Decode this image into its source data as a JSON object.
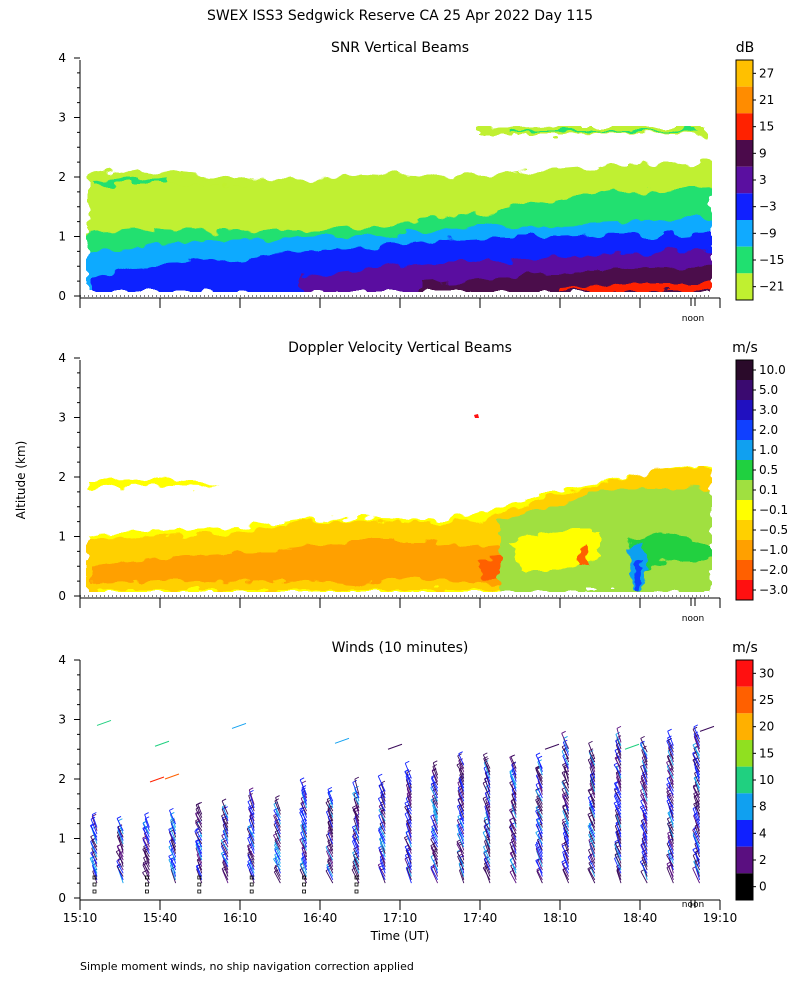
{
  "figure": {
    "title": "SWEX ISS3 Sedgwick Reserve CA  25 Apr 2022 Day 115",
    "footnote": "Simple moment winds, no ship navigation correction applied",
    "ylabel": "Altitude (km)",
    "xlabel": "Time (UT)",
    "noon_label": "noon"
  },
  "chart_data": [
    {
      "type": "heatmap",
      "title": "SNR Vertical Beams",
      "units": "dB",
      "y_ticks": [
        "0",
        "1",
        "2",
        "3",
        "4"
      ],
      "ylim": [
        0,
        4
      ],
      "colorbar": {
        "labels": [
          "27",
          "21",
          "15",
          "9",
          "3",
          "−3",
          "−9",
          "−15",
          "−21"
        ],
        "colors": [
          "#ffc000",
          "#ff8c00",
          "#ff2200",
          "#4b0a4b",
          "#5a0fa0",
          "#1020ff",
          "#10aaff",
          "#20e070",
          "#c0f030"
        ]
      },
      "summary": "High SNR (3-21 dB) below 1 km, decreasing upward; weak layers near 2 km and 2.8 km"
    },
    {
      "type": "heatmap",
      "title": "Doppler Velocity Vertical Beams",
      "units": "m/s",
      "y_ticks": [
        "0",
        "1",
        "2",
        "3",
        "4"
      ],
      "ylim": [
        0,
        4
      ],
      "colorbar": {
        "labels": [
          "10.0",
          "5.0",
          "3.0",
          "2.0",
          "1.0",
          "0.5",
          "0.1",
          "−0.1",
          "−0.5",
          "−1.0",
          "−2.0",
          "−3.0"
        ],
        "colors": [
          "#2a0a2a",
          "#3a0a70",
          "#2010c0",
          "#1040ff",
          "#10a0f0",
          "#20d040",
          "#a0e040",
          "#ffff00",
          "#ffd000",
          "#ffa000",
          "#ff6000",
          "#ff1010"
        ]
      },
      "summary": "Mostly weak downward motion (-0.1 to -1.0 m/s) below 1.5 km, updrafts near 18:40 UT"
    },
    {
      "type": "scatter",
      "title": "Winds (10 minutes)",
      "units": "m/s",
      "y_ticks": [
        "0",
        "1",
        "2",
        "3",
        "4"
      ],
      "ylim": [
        0,
        4
      ],
      "x_ticks": [
        "15:10",
        "15:40",
        "16:10",
        "16:40",
        "17:10",
        "17:40",
        "18:10",
        "18:40",
        "19:10"
      ],
      "xlim": [
        "15:10",
        "19:10"
      ],
      "colorbar": {
        "labels": [
          "30",
          "25",
          "20",
          "15",
          "10",
          "8",
          "4",
          "2",
          "0"
        ],
        "colors": [
          "#ff1010",
          "#ff6000",
          "#ffb000",
          "#90e020",
          "#20d080",
          "#10a0f0",
          "#1020ff",
          "#5a0f80",
          "#000000"
        ]
      },
      "summary": "Wind barbs every 10 minutes from 0.2 to about 2.9 km, mostly 2-10 m/s"
    }
  ]
}
